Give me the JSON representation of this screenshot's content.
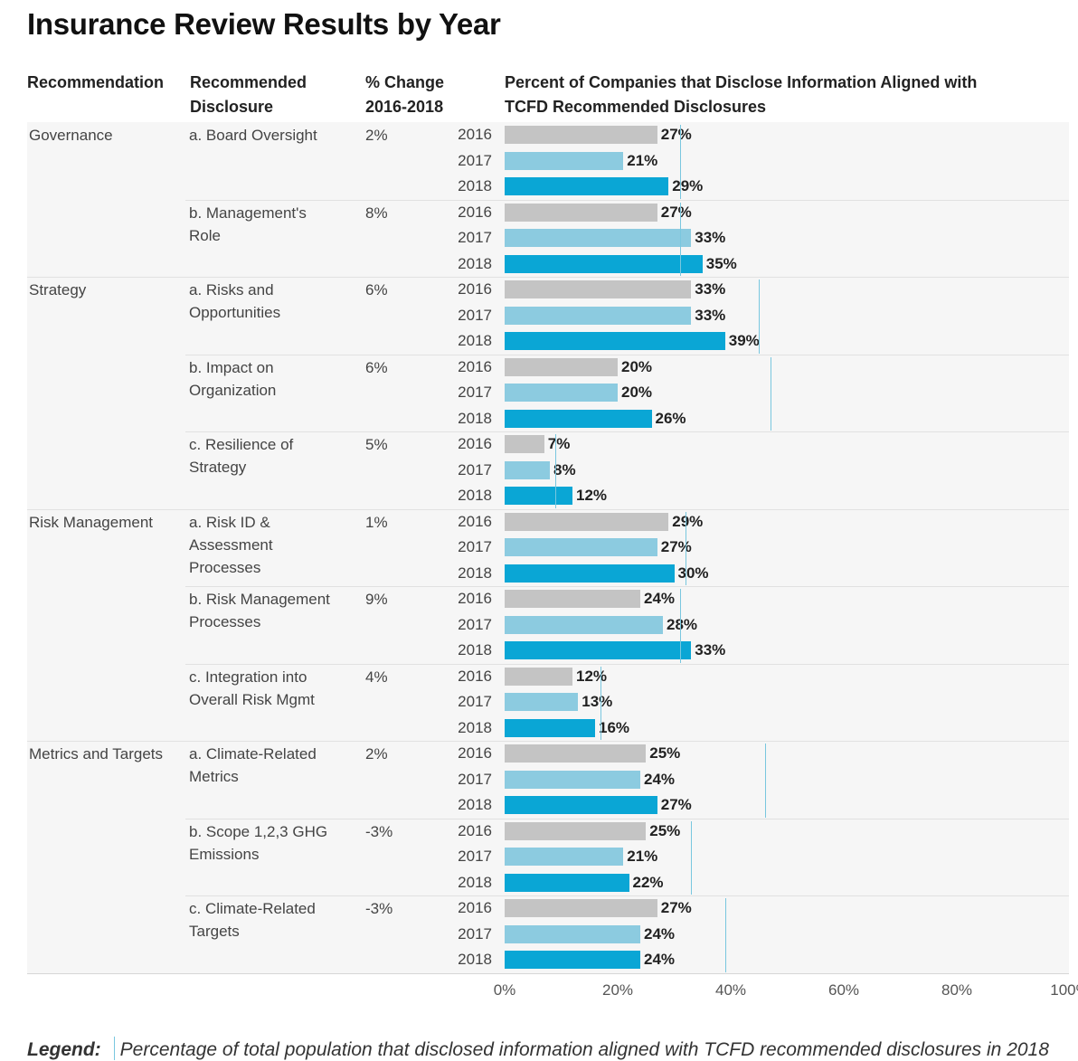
{
  "title": "Insurance Review Results by Year",
  "headers": {
    "recommendation": "Recommendation",
    "disclosure_line1": "Recommended",
    "disclosure_line2": "Disclosure",
    "change_line1": "% Change",
    "change_line2": "2016-2018",
    "percent_line1": "Percent of Companies that Disclose Information Aligned with",
    "percent_line2": "TCFD Recommended Disclosures"
  },
  "colors": {
    "2016": "#c4c4c4",
    "2017": "#8ccbe0",
    "2018": "#0aa6d5",
    "reference_line": "#79c7df"
  },
  "legend": {
    "label": "Legend:",
    "text": "Percentage of total population that disclosed information aligned with TCFD recommended disclosures in 2018"
  },
  "chart_data": {
    "type": "bar",
    "orientation": "horizontal",
    "title": "Insurance Review Results by Year",
    "xlim": [
      0,
      100
    ],
    "x_ticks": [
      "0%",
      "20%",
      "40%",
      "60%",
      "80%",
      "100%"
    ],
    "years": [
      "2016",
      "2017",
      "2018"
    ],
    "value_suffix": "%",
    "groups": [
      {
        "recommendation": "Governance",
        "disclosures": [
          {
            "lines": [
              "a. Board Oversight"
            ],
            "change": "2%",
            "values": [
              27,
              21,
              29
            ],
            "population_2018": 31
          },
          {
            "lines": [
              "b. Management's",
              "Role"
            ],
            "change": "8%",
            "values": [
              27,
              33,
              35
            ],
            "population_2018": 31
          }
        ]
      },
      {
        "recommendation": "Strategy",
        "disclosures": [
          {
            "lines": [
              "a. Risks and",
              "Opportunities"
            ],
            "change": "6%",
            "values": [
              33,
              33,
              39
            ],
            "population_2018": 45
          },
          {
            "lines": [
              "b. Impact on",
              "Organization"
            ],
            "change": "6%",
            "values": [
              20,
              20,
              26
            ],
            "population_2018": 47
          },
          {
            "lines": [
              "c. Resilience of",
              "Strategy"
            ],
            "change": "5%",
            "values": [
              7,
              8,
              12
            ],
            "population_2018": 9
          }
        ]
      },
      {
        "recommendation": "Risk Management",
        "disclosures": [
          {
            "lines": [
              "a. Risk ID &",
              "Assessment",
              "Processes"
            ],
            "change": "1%",
            "values": [
              29,
              27,
              30
            ],
            "population_2018": 32
          },
          {
            "lines": [
              "b. Risk Management",
              "Processes"
            ],
            "change": "9%",
            "values": [
              24,
              28,
              33
            ],
            "population_2018": 31
          },
          {
            "lines": [
              "c. Integration into",
              "Overall Risk Mgmt"
            ],
            "change": "4%",
            "values": [
              12,
              13,
              16
            ],
            "population_2018": 17
          }
        ]
      },
      {
        "recommendation": "Metrics and Targets",
        "disclosures": [
          {
            "lines": [
              "a. Climate-Related",
              "Metrics"
            ],
            "change": "2%",
            "values": [
              25,
              24,
              27
            ],
            "population_2018": 46
          },
          {
            "lines": [
              "b. Scope 1,2,3 GHG",
              "Emissions"
            ],
            "change": "-3%",
            "values": [
              25,
              21,
              22
            ],
            "population_2018": 33
          },
          {
            "lines": [
              "c. Climate-Related",
              "Targets"
            ],
            "change": "-3%",
            "values": [
              27,
              24,
              24
            ],
            "population_2018": 39
          }
        ]
      }
    ]
  }
}
